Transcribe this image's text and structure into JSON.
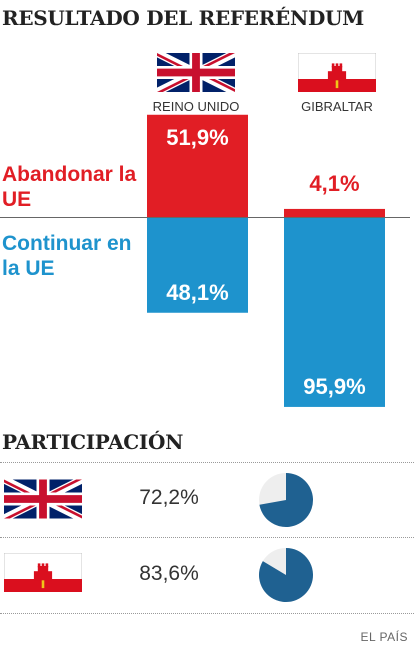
{
  "title": "RESULTADO DEL REFERÉNDUM",
  "columns": [
    {
      "label": "REINO UNIDO",
      "flag_icon": "uk-flag-icon"
    },
    {
      "label": "GIBRALTAR",
      "flag_icon": "gibraltar-flag-icon"
    }
  ],
  "legend": {
    "leave": "Abandonar la UE",
    "remain": "Continuar en la UE"
  },
  "colors": {
    "leave": "#e11e25",
    "remain": "#1e93cd",
    "pie_fill": "#1f6191",
    "pie_rest": "#eeeeee"
  },
  "chart_data": [
    {
      "type": "bar",
      "title": "RESULTADO DEL REFERÉNDUM",
      "categories": [
        "REINO UNIDO",
        "GIBRALTAR"
      ],
      "series": [
        {
          "name": "Abandonar la UE",
          "values": [
            51.9,
            4.1
          ],
          "labels": [
            "51,9%",
            "4,1%"
          ]
        },
        {
          "name": "Continuar en la UE",
          "values": [
            48.1,
            95.9
          ],
          "labels": [
            "48,1%",
            "95,9%"
          ]
        }
      ],
      "xlabel": "",
      "ylabel": "",
      "ylim": [
        0,
        100
      ]
    },
    {
      "type": "pie",
      "title": "PARTICIPACIÓN",
      "rows": [
        {
          "flag_icon": "uk-flag-icon",
          "value": 72.2,
          "label": "72,2%"
        },
        {
          "flag_icon": "gibraltar-flag-icon",
          "value": 83.6,
          "label": "83,6%"
        }
      ]
    }
  ],
  "turnout_title": "PARTICIPACIÓN",
  "source": "EL PAÍS"
}
